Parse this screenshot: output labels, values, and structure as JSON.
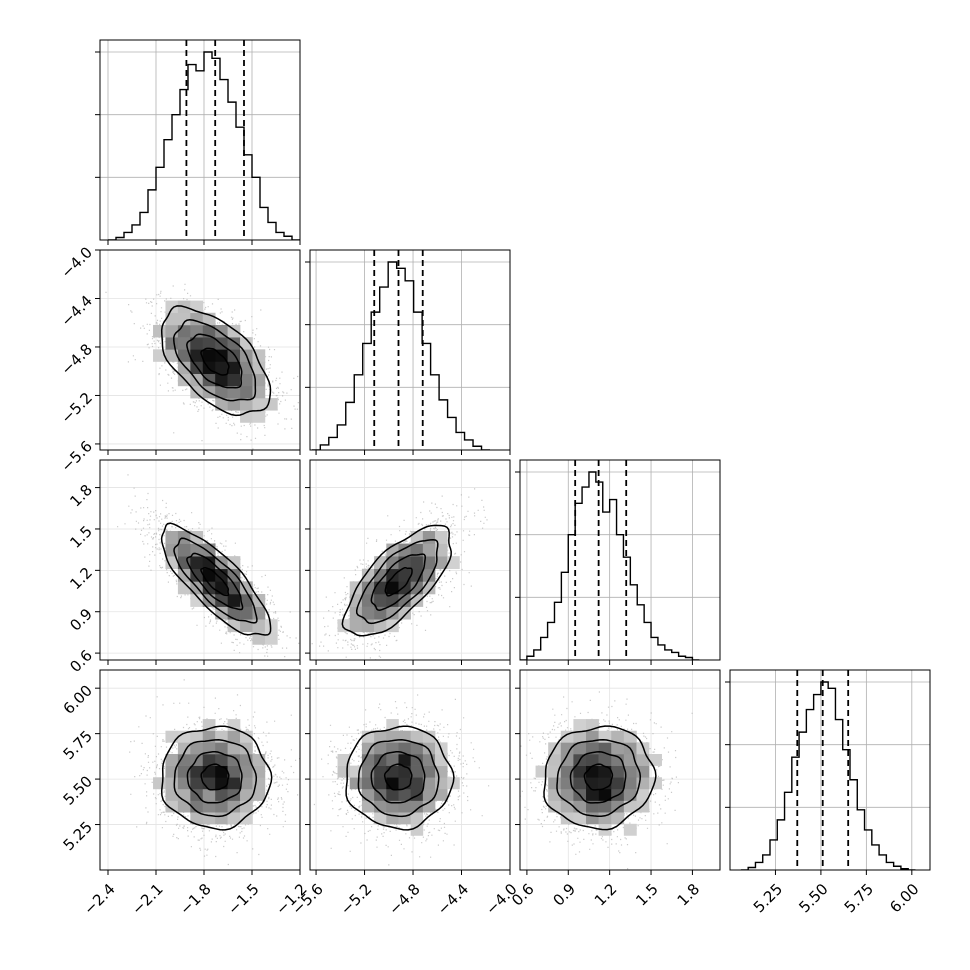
{
  "chart_data": {
    "type": "corner",
    "grid": true,
    "quantiles": [
      0.16,
      0.5,
      0.84
    ],
    "colors": {
      "hist": "#000000",
      "points": "#9e9e9e",
      "contour": "#000000",
      "grid": "#b0b0b0"
    },
    "params": [
      {
        "range": [
          -2.45,
          -1.2
        ],
        "ticks": [
          -2.4,
          -2.1,
          -1.8,
          -1.5,
          -1.2
        ],
        "tick_labels": [
          "−2.4",
          "−2.1",
          "−1.8",
          "−1.5",
          "−1.2"
        ],
        "mean": -1.73,
        "sd": 0.17,
        "quantile_values": [
          -1.91,
          -1.73,
          -1.55
        ],
        "hist_x": [
          -2.375,
          -2.325,
          -2.275,
          -2.225,
          -2.175,
          -2.125,
          -2.075,
          -2.025,
          -1.975,
          -1.925,
          -1.875,
          -1.825,
          -1.775,
          -1.725,
          -1.675,
          -1.625,
          -1.575,
          -1.525,
          -1.475,
          -1.425,
          -1.375,
          -1.325,
          -1.275,
          -1.225
        ],
        "hist_y": [
          0,
          2,
          6,
          12,
          22,
          40,
          58,
          80,
          100,
          120,
          140,
          135,
          150,
          145,
          128,
          110,
          90,
          68,
          50,
          26,
          14,
          6,
          3,
          0
        ]
      },
      {
        "range": [
          -5.65,
          -4.0
        ],
        "ticks": [
          -5.6,
          -5.2,
          -4.8,
          -4.4,
          -4.0
        ],
        "tick_labels": [
          "−5.6",
          "−5.2",
          "−4.8",
          "−4.4",
          "−4.0"
        ],
        "mean": -4.92,
        "sd": 0.22,
        "quantile_values": [
          -5.12,
          -4.92,
          -4.72
        ],
        "hist_x": [
          -5.6,
          -5.53,
          -5.46,
          -5.39,
          -5.32,
          -5.25,
          -5.18,
          -5.11,
          -5.04,
          -4.97,
          -4.9,
          -4.83,
          -4.76,
          -4.69,
          -4.62,
          -4.55,
          -4.48,
          -4.41,
          -4.34,
          -4.27,
          -4.2
        ],
        "hist_y": [
          0,
          4,
          10,
          20,
          38,
          60,
          85,
          110,
          130,
          150,
          145,
          135,
          110,
          85,
          60,
          40,
          26,
          14,
          8,
          3,
          0
        ]
      },
      {
        "range": [
          0.55,
          2.0
        ],
        "ticks": [
          0.6,
          0.9,
          1.2,
          1.5,
          1.8
        ],
        "tick_labels": [
          "0.6",
          "0.9",
          "1.2",
          "1.5",
          "1.8"
        ],
        "mean": 1.12,
        "sd": 0.2,
        "quantile_values": [
          0.95,
          1.12,
          1.32
        ],
        "hist_x": [
          0.575,
          0.625,
          0.675,
          0.725,
          0.775,
          0.825,
          0.875,
          0.925,
          0.975,
          1.025,
          1.075,
          1.125,
          1.175,
          1.225,
          1.275,
          1.325,
          1.375,
          1.425,
          1.475,
          1.525,
          1.575,
          1.625,
          1.675,
          1.725,
          1.775,
          1.825
        ],
        "hist_y": [
          0,
          3,
          8,
          18,
          30,
          46,
          70,
          100,
          125,
          138,
          150,
          142,
          118,
          128,
          100,
          82,
          60,
          44,
          30,
          18,
          12,
          8,
          6,
          3,
          2,
          0
        ]
      },
      {
        "range": [
          5.0,
          6.1
        ],
        "ticks": [
          5.25,
          5.5,
          5.75,
          6.0
        ],
        "tick_labels": [
          "5.25",
          "5.50",
          "5.75",
          "6.00"
        ],
        "mean": 5.51,
        "sd": 0.14,
        "quantile_values": [
          5.37,
          5.51,
          5.65
        ],
        "hist_x": [
          5.08,
          5.12,
          5.16,
          5.2,
          5.24,
          5.28,
          5.32,
          5.36,
          5.4,
          5.44,
          5.48,
          5.52,
          5.56,
          5.6,
          5.64,
          5.68,
          5.72,
          5.76,
          5.8,
          5.84,
          5.88,
          5.92,
          5.96,
          6.0
        ],
        "hist_y": [
          0,
          2,
          6,
          12,
          24,
          40,
          62,
          90,
          110,
          128,
          140,
          150,
          145,
          120,
          96,
          72,
          48,
          32,
          20,
          12,
          6,
          3,
          1,
          0
        ]
      }
    ],
    "correlations": {
      "1-0": -0.55,
      "2-0": -0.8,
      "2-1": 0.7,
      "3-0": 0.0,
      "3-1": 0.0,
      "3-2": 0.05
    }
  }
}
